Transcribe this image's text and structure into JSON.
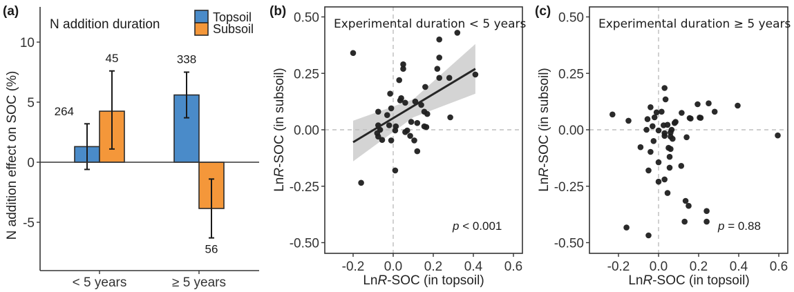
{
  "chart_data": [
    {
      "panel": "(a)",
      "type": "bar",
      "title": "N addition duration",
      "xlabel": "",
      "ylabel": "N addition effect on SOC (%)",
      "ylim": [
        -9,
        13
      ],
      "yticks": [
        -5,
        0,
        5,
        10
      ],
      "ytick_labels": [
        "-5",
        "0",
        "5",
        "10"
      ],
      "categories": [
        "< 5 years",
        "≥ 5 years"
      ],
      "legend": {
        "placement": "top-right",
        "entries": [
          "Topsoil",
          "Subsoil"
        ]
      },
      "series": [
        {
          "name": "Topsoil",
          "color": "#4a8bc9",
          "values": [
            1.3,
            5.6
          ],
          "err_low": [
            -0.6,
            3.7
          ],
          "err_high": [
            3.2,
            7.5
          ],
          "n_labels": [
            "264",
            "338"
          ]
        },
        {
          "name": "Subsoil",
          "color": "#f4973a",
          "values": [
            4.25,
            -3.85
          ],
          "err_low": [
            1.1,
            -6.3
          ],
          "err_high": [
            7.6,
            -1.4
          ],
          "n_labels": [
            "45",
            "56"
          ]
        }
      ]
    },
    {
      "panel": "(b)",
      "type": "scatter",
      "title": "Experimental duration < 5 years",
      "xlabel_parts": [
        "Ln",
        "R",
        "-SOC (in topsoil)"
      ],
      "ylabel_parts": [
        "Ln",
        "R",
        "-SOC (in subsoil)"
      ],
      "xlim": [
        -0.34,
        0.645
      ],
      "ylim": [
        -0.545,
        0.545
      ],
      "xticks": [
        -0.2,
        0.0,
        0.2,
        0.4,
        0.6
      ],
      "xtick_labels": [
        "-0.2",
        "0.0",
        "0.2",
        "0.4",
        "0.6"
      ],
      "yticks": [
        -0.5,
        -0.25,
        0.0,
        0.25,
        0.5
      ],
      "ytick_labels": [
        "-0.50",
        "-0.25",
        "0.00",
        "0.25",
        "0.50"
      ],
      "reference_lines": {
        "x": 0,
        "y": 0,
        "style": "dashed"
      },
      "annotation": {
        "p_symbol": "p",
        "text": " < 0.001"
      },
      "fit": {
        "x": [
          -0.2,
          0.41
        ],
        "y": [
          -0.055,
          0.27
        ],
        "ci_upper": [
          0.04,
          0.38
        ],
        "ci_lower": [
          -0.14,
          0.16
        ],
        "ci_mid_upper": 0.135,
        "ci_mid_lower": 0.055,
        "ci_mid_x": 0.1
      },
      "points": [
        [
          -0.2,
          0.34
        ],
        [
          0.32,
          0.43
        ],
        [
          0.23,
          0.4
        ],
        [
          0.23,
          0.32
        ],
        [
          0.22,
          0.27
        ],
        [
          0.05,
          0.29
        ],
        [
          0.05,
          0.27
        ],
        [
          0.03,
          0.22
        ],
        [
          0.41,
          0.245
        ],
        [
          0.23,
          0.23
        ],
        [
          0.28,
          0.23
        ],
        [
          0.16,
          0.19
        ],
        [
          -0.015,
          0.16
        ],
        [
          0.04,
          0.14
        ],
        [
          0.035,
          0.13
        ],
        [
          0.06,
          0.12
        ],
        [
          0.11,
          0.125
        ],
        [
          0.14,
          0.11
        ],
        [
          -0.01,
          0.095
        ],
        [
          -0.075,
          0.08
        ],
        [
          -0.03,
          0.065
        ],
        [
          0.155,
          0.08
        ],
        [
          0.17,
          0.07
        ],
        [
          0.285,
          0.055
        ],
        [
          0.09,
          0.035
        ],
        [
          0.12,
          0.03
        ],
        [
          0.155,
          0.015
        ],
        [
          0.165,
          0.012
        ],
        [
          -0.075,
          0.02
        ],
        [
          -0.02,
          0.02
        ],
        [
          0.013,
          0.015
        ],
        [
          -0.065,
          0.0
        ],
        [
          0.01,
          -0.003
        ],
        [
          0.07,
          -0.003
        ],
        [
          0.06,
          -0.01
        ],
        [
          -0.08,
          -0.015
        ],
        [
          -0.075,
          -0.03
        ],
        [
          0.085,
          -0.027
        ],
        [
          -0.055,
          -0.045
        ],
        [
          -0.01,
          -0.047
        ],
        [
          0.105,
          -0.047
        ],
        [
          0.12,
          -0.095
        ],
        [
          0.01,
          -0.18
        ],
        [
          -0.16,
          -0.235
        ]
      ]
    },
    {
      "panel": "(c)",
      "type": "scatter",
      "title": "Experimental duration ≥ 5 years",
      "xlabel_parts": [
        "Ln",
        "R",
        "-SOC (in topsoil)"
      ],
      "ylabel_parts": [
        "Ln",
        "R",
        "-SOC (in subsoil)"
      ],
      "xlim": [
        -0.34,
        0.645
      ],
      "ylim": [
        -0.545,
        0.545
      ],
      "xticks": [
        -0.2,
        0.0,
        0.2,
        0.4,
        0.6
      ],
      "xtick_labels": [
        "-0.2",
        "0.0",
        "0.2",
        "0.4",
        "0.6"
      ],
      "yticks": [
        -0.5,
        -0.25,
        0.0,
        0.25,
        0.5
      ],
      "ytick_labels": [
        "-0.50",
        "-0.25",
        "0.00",
        "0.25",
        "0.50"
      ],
      "reference_lines": {
        "x": 0,
        "y": 0,
        "style": "dashed"
      },
      "annotation": {
        "p_symbol": "p",
        "text": " = 0.88"
      },
      "points": [
        [
          0.03,
          0.185
        ],
        [
          0.035,
          0.135
        ],
        [
          -0.04,
          0.1
        ],
        [
          -0.01,
          0.077
        ],
        [
          0.015,
          0.08
        ],
        [
          -0.23,
          0.068
        ],
        [
          -0.15,
          0.04
        ],
        [
          -0.055,
          0.047
        ],
        [
          -0.02,
          0.055
        ],
        [
          0.115,
          0.075
        ],
        [
          0.21,
          0.053
        ],
        [
          0.16,
          0.05
        ],
        [
          -0.03,
          0.016
        ],
        [
          0.025,
          0.02
        ],
        [
          0.045,
          0.022
        ],
        [
          0.08,
          0.03
        ],
        [
          0.085,
          0.035
        ],
        [
          -0.06,
          0.0
        ],
        [
          0.0,
          -0.003
        ],
        [
          0.065,
          0.0
        ],
        [
          0.03,
          -0.015
        ],
        [
          0.06,
          -0.012
        ],
        [
          0.03,
          -0.027
        ],
        [
          0.06,
          -0.03
        ],
        [
          0.07,
          -0.04
        ],
        [
          0.14,
          -0.033
        ],
        [
          -0.025,
          -0.05
        ],
        [
          -0.09,
          -0.077
        ],
        [
          -0.04,
          -0.098
        ],
        [
          0.05,
          -0.08
        ],
        [
          0.06,
          -0.085
        ],
        [
          0.055,
          -0.12
        ],
        [
          0.0,
          -0.144
        ],
        [
          0.055,
          -0.168
        ],
        [
          0.113,
          -0.16
        ],
        [
          -0.05,
          -0.18
        ],
        [
          0.0,
          -0.23
        ],
        [
          0.03,
          -0.22
        ],
        [
          0.045,
          -0.28
        ],
        [
          0.135,
          -0.315
        ],
        [
          0.15,
          -0.337
        ],
        [
          0.24,
          -0.36
        ],
        [
          0.13,
          -0.407
        ],
        [
          0.24,
          -0.407
        ],
        [
          -0.16,
          -0.433
        ],
        [
          -0.05,
          -0.468
        ],
        [
          0.195,
          0.113
        ],
        [
          0.25,
          0.117
        ],
        [
          0.28,
          0.08
        ],
        [
          0.395,
          0.107
        ],
        [
          0.155,
          0.052
        ],
        [
          0.205,
          0.054
        ],
        [
          0.595,
          -0.025
        ]
      ]
    }
  ]
}
